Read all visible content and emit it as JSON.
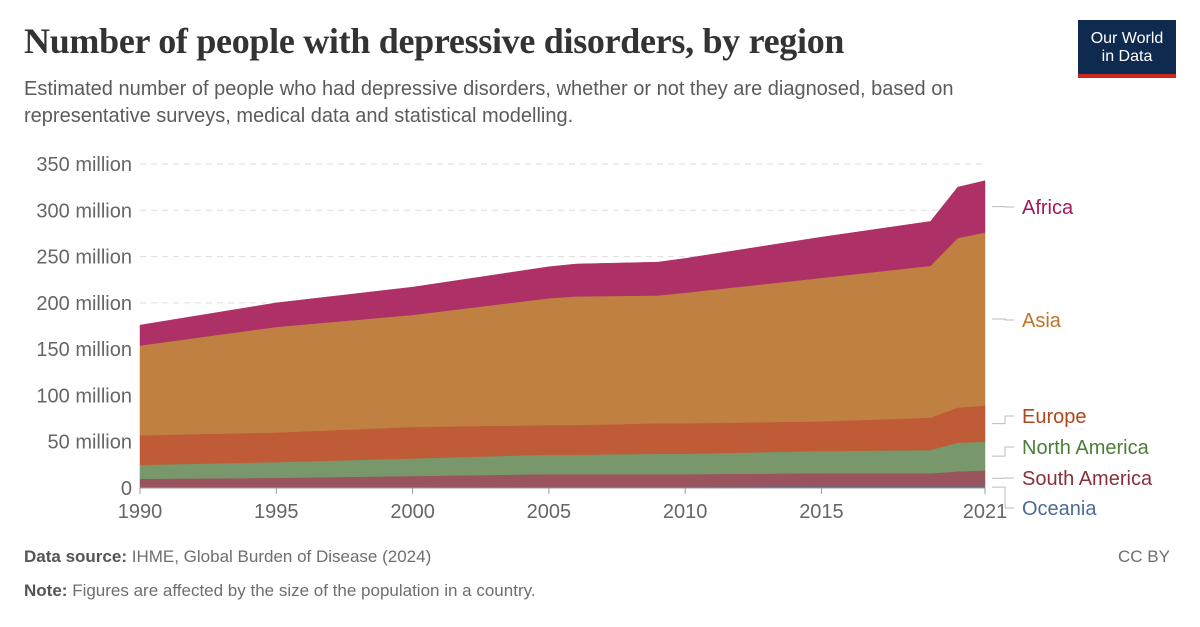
{
  "title": "Number of people with depressive disorders, by region",
  "subtitle": "Estimated number of people who had depressive disorders, whether or not they are diagnosed, based on representative surveys, medical data and statistical modelling.",
  "logo": {
    "line1": "Our World",
    "line2": "in Data"
  },
  "footer": {
    "source_label": "Data source:",
    "source_text": "IHME, Global Burden of Disease (2024)",
    "note_label": "Note:",
    "note_text": "Figures are affected by the size of the population in a country.",
    "license": "CC BY"
  },
  "chart_data": {
    "type": "area",
    "stacked": true,
    "x": [
      1990,
      1995,
      2000,
      2005,
      2006,
      2009,
      2010,
      2015,
      2019,
      2020,
      2021
    ],
    "xticks": [
      "1990",
      "1995",
      "2000",
      "2005",
      "2010",
      "2015",
      "2021"
    ],
    "xtick_values": [
      1990,
      1995,
      2000,
      2005,
      2010,
      2015,
      2021
    ],
    "yticks": [
      "0",
      "50 million",
      "100 million",
      "150 million",
      "200 million",
      "250 million",
      "300 million",
      "350 million"
    ],
    "ytick_values": [
      0,
      50,
      100,
      150,
      200,
      250,
      300,
      350
    ],
    "ylim": [
      0,
      350
    ],
    "unit": "million",
    "grid": "horizontal dashed",
    "legend": "right, inline labels",
    "series": [
      {
        "name": "Oceania",
        "color": "#4c6a9c",
        "label_color": "#4c6a9c",
        "values": [
          1,
          1,
          1,
          1.5,
          1.5,
          1.5,
          1.5,
          2,
          2,
          2,
          2
        ]
      },
      {
        "name": "South America",
        "color": "#9a545d",
        "label_color": "#883039",
        "values": [
          9,
          10,
          12,
          13.5,
          13.5,
          13.5,
          13.5,
          14,
          14,
          16,
          17
        ]
      },
      {
        "name": "North America",
        "color": "#78976a",
        "label_color": "#4c7e38",
        "values": [
          15,
          17,
          19,
          21,
          21,
          22,
          22,
          24,
          25,
          31,
          31
        ]
      },
      {
        "name": "Europe",
        "color": "#bf5b37",
        "label_color": "#b1451b",
        "values": [
          32,
          32,
          34,
          32,
          32,
          33,
          33,
          32,
          35,
          38,
          39
        ]
      },
      {
        "name": "Asia",
        "color": "#c08041",
        "label_color": "#c0732b",
        "values": [
          97,
          114,
          121,
          137,
          139,
          138,
          141,
          155,
          164,
          183,
          187
        ]
      },
      {
        "name": "Africa",
        "color": "#ad3166",
        "label_color": "#a2185b",
        "values": [
          22,
          26,
          30,
          34,
          35,
          36,
          37,
          44,
          48,
          55,
          56
        ]
      }
    ]
  }
}
